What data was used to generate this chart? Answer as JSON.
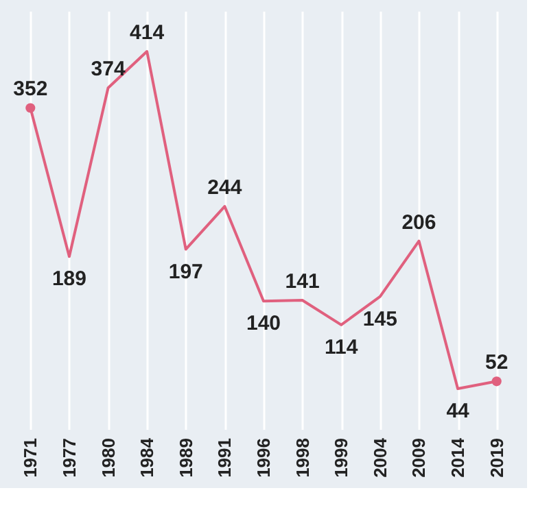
{
  "chart_data": {
    "type": "line",
    "categories": [
      "1971",
      "1977",
      "1980",
      "1984",
      "1989",
      "1991",
      "1996",
      "1998",
      "1999",
      "2004",
      "2009",
      "2014",
      "2019"
    ],
    "values": [
      352,
      189,
      374,
      414,
      197,
      244,
      140,
      141,
      114,
      145,
      206,
      44,
      52
    ],
    "color": "#e0607e",
    "data_labels": true,
    "grid": "x"
  }
}
